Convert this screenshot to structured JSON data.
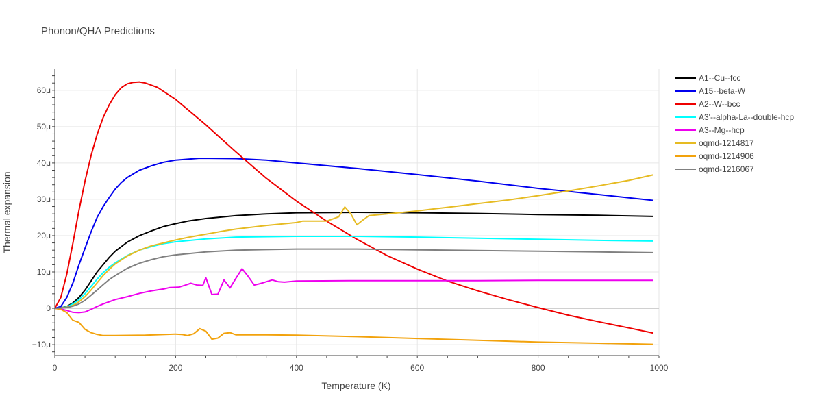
{
  "chart_data": {
    "type": "line",
    "title": "Phonon/QHA Predictions",
    "xlabel": "Temperature (K)",
    "ylabel": "Thermal expansion",
    "xlim": [
      0,
      1000
    ],
    "ylim": [
      -13,
      66
    ],
    "x_ticks": [
      0,
      200,
      400,
      600,
      800,
      1000
    ],
    "x_tick_labels": [
      "0",
      "200",
      "400",
      "600",
      "800",
      "1000"
    ],
    "y_ticks": [
      -10,
      0,
      10,
      20,
      30,
      40,
      50,
      60
    ],
    "y_tick_labels": [
      "−10μ",
      "0",
      "10μ",
      "20μ",
      "30μ",
      "40μ",
      "50μ",
      "60μ"
    ],
    "y_unit": "1e-6 per K",
    "grid": true,
    "legend_position": "top-right",
    "series": [
      {
        "name": "A1--Cu--fcc",
        "color": "#000000",
        "points": [
          [
            0,
            0
          ],
          [
            10,
            0.1
          ],
          [
            20,
            0.5
          ],
          [
            30,
            1.5
          ],
          [
            40,
            3
          ],
          [
            50,
            5
          ],
          [
            60,
            7.5
          ],
          [
            70,
            10
          ],
          [
            80,
            12
          ],
          [
            90,
            14
          ],
          [
            100,
            15.7
          ],
          [
            120,
            18.2
          ],
          [
            140,
            20
          ],
          [
            160,
            21.3
          ],
          [
            180,
            22.5
          ],
          [
            200,
            23.3
          ],
          [
            220,
            24
          ],
          [
            250,
            24.7
          ],
          [
            300,
            25.5
          ],
          [
            350,
            26
          ],
          [
            400,
            26.3
          ],
          [
            500,
            26.4
          ],
          [
            600,
            26.3
          ],
          [
            700,
            26.1
          ],
          [
            800,
            25.8
          ],
          [
            900,
            25.6
          ],
          [
            990,
            25.3
          ]
        ]
      },
      {
        "name": "A15--beta-W",
        "color": "#0000ee",
        "points": [
          [
            0,
            0
          ],
          [
            10,
            0.5
          ],
          [
            20,
            3
          ],
          [
            30,
            7
          ],
          [
            40,
            12
          ],
          [
            50,
            16.5
          ],
          [
            60,
            21
          ],
          [
            70,
            25
          ],
          [
            80,
            28
          ],
          [
            90,
            30.5
          ],
          [
            100,
            32.8
          ],
          [
            110,
            34.6
          ],
          [
            120,
            36
          ],
          [
            140,
            38
          ],
          [
            160,
            39.2
          ],
          [
            180,
            40.2
          ],
          [
            200,
            40.8
          ],
          [
            240,
            41.3
          ],
          [
            300,
            41.2
          ],
          [
            350,
            40.8
          ],
          [
            400,
            40
          ],
          [
            500,
            38.5
          ],
          [
            600,
            36.8
          ],
          [
            700,
            35
          ],
          [
            800,
            33
          ],
          [
            900,
            31.3
          ],
          [
            990,
            29.7
          ]
        ]
      },
      {
        "name": "A2--W--bcc",
        "color": "#ee0000",
        "points": [
          [
            0,
            0
          ],
          [
            10,
            3
          ],
          [
            20,
            9.5
          ],
          [
            30,
            18
          ],
          [
            40,
            27
          ],
          [
            50,
            35
          ],
          [
            60,
            42
          ],
          [
            70,
            47.8
          ],
          [
            80,
            52.5
          ],
          [
            90,
            56
          ],
          [
            100,
            58.8
          ],
          [
            110,
            60.7
          ],
          [
            120,
            61.8
          ],
          [
            130,
            62.2
          ],
          [
            140,
            62.3
          ],
          [
            150,
            62
          ],
          [
            170,
            60.8
          ],
          [
            200,
            57.5
          ],
          [
            250,
            50.5
          ],
          [
            300,
            43
          ],
          [
            350,
            35.8
          ],
          [
            400,
            29.5
          ],
          [
            450,
            24
          ],
          [
            500,
            19
          ],
          [
            550,
            14.5
          ],
          [
            600,
            10.8
          ],
          [
            650,
            7.5
          ],
          [
            700,
            4.8
          ],
          [
            750,
            2.4
          ],
          [
            800,
            0.2
          ],
          [
            850,
            -1.9
          ],
          [
            900,
            -3.7
          ],
          [
            950,
            -5.4
          ],
          [
            990,
            -6.8
          ]
        ]
      },
      {
        "name": "A3'--alpha-La--double-hcp",
        "color": "#00ffff",
        "points": [
          [
            0,
            0
          ],
          [
            10,
            0.1
          ],
          [
            20,
            0.4
          ],
          [
            30,
            1.2
          ],
          [
            40,
            2.4
          ],
          [
            50,
            4
          ],
          [
            60,
            6
          ],
          [
            70,
            8
          ],
          [
            80,
            9.8
          ],
          [
            90,
            11.3
          ],
          [
            100,
            12.5
          ],
          [
            120,
            14.5
          ],
          [
            140,
            16
          ],
          [
            160,
            17
          ],
          [
            180,
            17.8
          ],
          [
            200,
            18.3
          ],
          [
            250,
            19.1
          ],
          [
            300,
            19.6
          ],
          [
            400,
            19.8
          ],
          [
            500,
            19.8
          ],
          [
            600,
            19.6
          ],
          [
            700,
            19.3
          ],
          [
            800,
            19
          ],
          [
            900,
            18.7
          ],
          [
            990,
            18.5
          ]
        ]
      },
      {
        "name": "A3--Mg--hcp",
        "color": "#ee00ee",
        "points": [
          [
            0,
            0
          ],
          [
            10,
            -0.2
          ],
          [
            20,
            -0.6
          ],
          [
            30,
            -1.1
          ],
          [
            40,
            -1.2
          ],
          [
            50,
            -1
          ],
          [
            60,
            -0.3
          ],
          [
            70,
            0.5
          ],
          [
            80,
            1.2
          ],
          [
            90,
            1.8
          ],
          [
            100,
            2.4
          ],
          [
            120,
            3.2
          ],
          [
            140,
            4.1
          ],
          [
            160,
            4.8
          ],
          [
            180,
            5.3
          ],
          [
            190,
            5.7
          ],
          [
            205,
            5.8
          ],
          [
            215,
            6.3
          ],
          [
            225,
            6.9
          ],
          [
            235,
            6.4
          ],
          [
            245,
            6.3
          ],
          [
            250,
            8.4
          ],
          [
            260,
            3.8
          ],
          [
            270,
            3.9
          ],
          [
            280,
            7.8
          ],
          [
            290,
            5.6
          ],
          [
            300,
            8.3
          ],
          [
            310,
            10.9
          ],
          [
            320,
            8.8
          ],
          [
            330,
            6.4
          ],
          [
            340,
            6.8
          ],
          [
            350,
            7.3
          ],
          [
            360,
            7.8
          ],
          [
            370,
            7.3
          ],
          [
            380,
            7.2
          ],
          [
            400,
            7.5
          ],
          [
            500,
            7.6
          ],
          [
            600,
            7.6
          ],
          [
            700,
            7.6
          ],
          [
            800,
            7.7
          ],
          [
            900,
            7.7
          ],
          [
            990,
            7.7
          ]
        ]
      },
      {
        "name": "oqmd-1214817",
        "color": "#e6bb22",
        "points": [
          [
            0,
            0
          ],
          [
            10,
            0.1
          ],
          [
            20,
            0.3
          ],
          [
            30,
            0.8
          ],
          [
            40,
            1.8
          ],
          [
            50,
            3.2
          ],
          [
            60,
            5
          ],
          [
            70,
            7
          ],
          [
            80,
            9
          ],
          [
            90,
            10.7
          ],
          [
            100,
            12.2
          ],
          [
            120,
            14.4
          ],
          [
            140,
            16
          ],
          [
            160,
            17.2
          ],
          [
            180,
            18
          ],
          [
            200,
            18.8
          ],
          [
            220,
            19.5
          ],
          [
            240,
            20.1
          ],
          [
            260,
            20.7
          ],
          [
            280,
            21.3
          ],
          [
            300,
            21.8
          ],
          [
            350,
            22.8
          ],
          [
            400,
            23.6
          ],
          [
            410,
            24
          ],
          [
            450,
            24
          ],
          [
            470,
            25.2
          ],
          [
            480,
            27.9
          ],
          [
            490,
            26
          ],
          [
            500,
            23
          ],
          [
            510,
            24.3
          ],
          [
            520,
            25.5
          ],
          [
            550,
            26
          ],
          [
            600,
            26.8
          ],
          [
            650,
            27.8
          ],
          [
            700,
            28.8
          ],
          [
            750,
            29.8
          ],
          [
            800,
            31
          ],
          [
            850,
            32.3
          ],
          [
            900,
            33.7
          ],
          [
            950,
            35.2
          ],
          [
            990,
            36.7
          ]
        ]
      },
      {
        "name": "oqmd-1214906",
        "color": "#f2a20c",
        "points": [
          [
            0,
            0
          ],
          [
            10,
            -0.3
          ],
          [
            20,
            -1.2
          ],
          [
            30,
            -3.3
          ],
          [
            40,
            -3.9
          ],
          [
            50,
            -5.8
          ],
          [
            60,
            -6.7
          ],
          [
            70,
            -7.2
          ],
          [
            80,
            -7.5
          ],
          [
            100,
            -7.5
          ],
          [
            150,
            -7.4
          ],
          [
            200,
            -7.1
          ],
          [
            210,
            -7.2
          ],
          [
            220,
            -7.5
          ],
          [
            230,
            -7
          ],
          [
            240,
            -5.6
          ],
          [
            250,
            -6.3
          ],
          [
            260,
            -8.5
          ],
          [
            270,
            -8.2
          ],
          [
            280,
            -6.9
          ],
          [
            290,
            -6.7
          ],
          [
            300,
            -7.3
          ],
          [
            350,
            -7.3
          ],
          [
            400,
            -7.4
          ],
          [
            500,
            -7.8
          ],
          [
            600,
            -8.3
          ],
          [
            700,
            -8.8
          ],
          [
            800,
            -9.3
          ],
          [
            900,
            -9.6
          ],
          [
            990,
            -9.9
          ]
        ]
      },
      {
        "name": "oqmd-1216067",
        "color": "#808080",
        "points": [
          [
            0,
            0
          ],
          [
            10,
            0.1
          ],
          [
            20,
            0.2
          ],
          [
            30,
            0.6
          ],
          [
            40,
            1.2
          ],
          [
            50,
            2.2
          ],
          [
            60,
            3.6
          ],
          [
            70,
            5
          ],
          [
            80,
            6.5
          ],
          [
            90,
            7.9
          ],
          [
            100,
            9
          ],
          [
            120,
            11
          ],
          [
            140,
            12.4
          ],
          [
            160,
            13.4
          ],
          [
            180,
            14.2
          ],
          [
            200,
            14.7
          ],
          [
            250,
            15.5
          ],
          [
            300,
            16
          ],
          [
            400,
            16.3
          ],
          [
            500,
            16.3
          ],
          [
            600,
            16.1
          ],
          [
            700,
            15.9
          ],
          [
            800,
            15.7
          ],
          [
            900,
            15.5
          ],
          [
            990,
            15.3
          ]
        ]
      }
    ]
  }
}
